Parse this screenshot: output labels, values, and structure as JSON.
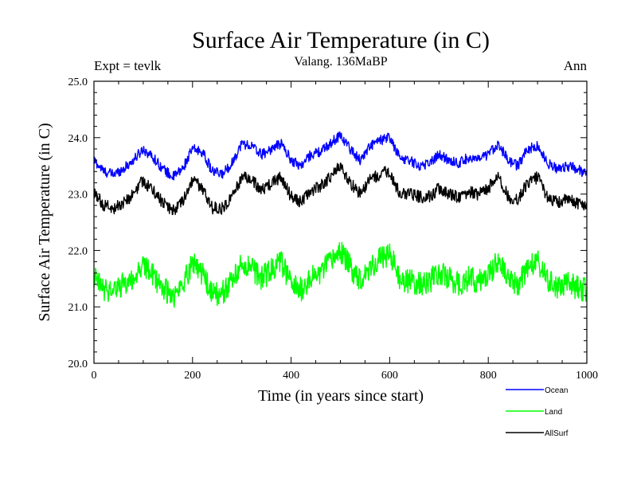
{
  "chart_data": {
    "type": "line",
    "title": "Surface Air Temperature (in C)",
    "subtitle": "Valang. 136MaBP",
    "left_label": "Expt = tevlk",
    "right_label": "Ann",
    "xlabel": "Time (in years since start)",
    "ylabel": "Surface Air Temperature (in C)",
    "xlim": [
      0,
      1000
    ],
    "ylim": [
      20.0,
      25.0
    ],
    "x_ticks": [
      0,
      200,
      400,
      600,
      800,
      1000
    ],
    "x_tick_labels": [
      "0",
      "200",
      "400",
      "600",
      "800",
      "1000"
    ],
    "y_ticks": [
      20.0,
      21.0,
      22.0,
      23.0,
      24.0,
      25.0
    ],
    "y_tick_labels": [
      "20.0",
      "21.0",
      "22.0",
      "23.0",
      "24.0",
      "25.0"
    ],
    "grid": false,
    "legend_position": "bottom-right, outside plot",
    "series": [
      {
        "name": "Ocean",
        "color": "#0000ff",
        "x": [
          0,
          20,
          40,
          60,
          80,
          100,
          120,
          140,
          160,
          180,
          200,
          220,
          240,
          260,
          280,
          300,
          320,
          340,
          360,
          380,
          400,
          420,
          440,
          460,
          480,
          500,
          520,
          540,
          560,
          580,
          600,
          620,
          640,
          660,
          680,
          700,
          720,
          740,
          760,
          780,
          800,
          820,
          840,
          860,
          880,
          900,
          920,
          940,
          960,
          980,
          1000
        ],
        "values": [
          23.6,
          23.4,
          23.35,
          23.45,
          23.6,
          23.8,
          23.65,
          23.45,
          23.3,
          23.45,
          23.8,
          23.75,
          23.4,
          23.35,
          23.55,
          23.9,
          23.85,
          23.7,
          23.8,
          23.9,
          23.6,
          23.5,
          23.7,
          23.75,
          23.9,
          24.05,
          23.8,
          23.6,
          23.85,
          23.95,
          24.0,
          23.65,
          23.6,
          23.5,
          23.55,
          23.7,
          23.6,
          23.55,
          23.65,
          23.6,
          23.7,
          23.9,
          23.6,
          23.5,
          23.8,
          23.85,
          23.55,
          23.45,
          23.5,
          23.45,
          23.35
        ]
      },
      {
        "name": "Land",
        "color": "#00ff00",
        "x": [
          0,
          20,
          40,
          60,
          80,
          100,
          120,
          140,
          160,
          180,
          200,
          220,
          240,
          260,
          280,
          300,
          320,
          340,
          360,
          380,
          400,
          420,
          440,
          460,
          480,
          500,
          520,
          540,
          560,
          580,
          600,
          620,
          640,
          660,
          680,
          700,
          720,
          740,
          760,
          780,
          800,
          820,
          840,
          860,
          880,
          900,
          920,
          940,
          960,
          980,
          1000
        ],
        "values": [
          21.5,
          21.3,
          21.3,
          21.4,
          21.5,
          21.75,
          21.55,
          21.35,
          21.15,
          21.4,
          21.8,
          21.6,
          21.2,
          21.25,
          21.45,
          21.75,
          21.7,
          21.5,
          21.65,
          21.8,
          21.4,
          21.3,
          21.5,
          21.6,
          21.8,
          22.0,
          21.7,
          21.5,
          21.7,
          21.85,
          21.95,
          21.5,
          21.45,
          21.4,
          21.45,
          21.6,
          21.5,
          21.4,
          21.5,
          21.45,
          21.55,
          21.85,
          21.45,
          21.4,
          21.7,
          21.8,
          21.45,
          21.35,
          21.4,
          21.35,
          21.3
        ]
      },
      {
        "name": "AllSurf",
        "color": "#000000",
        "x": [
          0,
          20,
          40,
          60,
          80,
          100,
          120,
          140,
          160,
          180,
          200,
          220,
          240,
          260,
          280,
          300,
          320,
          340,
          360,
          380,
          400,
          420,
          440,
          460,
          480,
          500,
          520,
          540,
          560,
          580,
          600,
          620,
          640,
          660,
          680,
          700,
          720,
          740,
          760,
          780,
          800,
          820,
          840,
          860,
          880,
          900,
          920,
          940,
          960,
          980,
          1000
        ],
        "values": [
          23.0,
          22.8,
          22.75,
          22.85,
          23.0,
          23.25,
          23.05,
          22.85,
          22.7,
          22.85,
          23.25,
          23.1,
          22.75,
          22.75,
          22.95,
          23.3,
          23.25,
          23.05,
          23.2,
          23.3,
          22.95,
          22.85,
          23.05,
          23.15,
          23.3,
          23.5,
          23.2,
          23.0,
          23.25,
          23.35,
          23.4,
          23.0,
          23.0,
          22.95,
          22.95,
          23.1,
          23.0,
          22.95,
          23.05,
          23.0,
          23.1,
          23.35,
          22.95,
          22.9,
          23.2,
          23.3,
          22.95,
          22.85,
          22.9,
          22.85,
          22.8
        ]
      }
    ]
  }
}
